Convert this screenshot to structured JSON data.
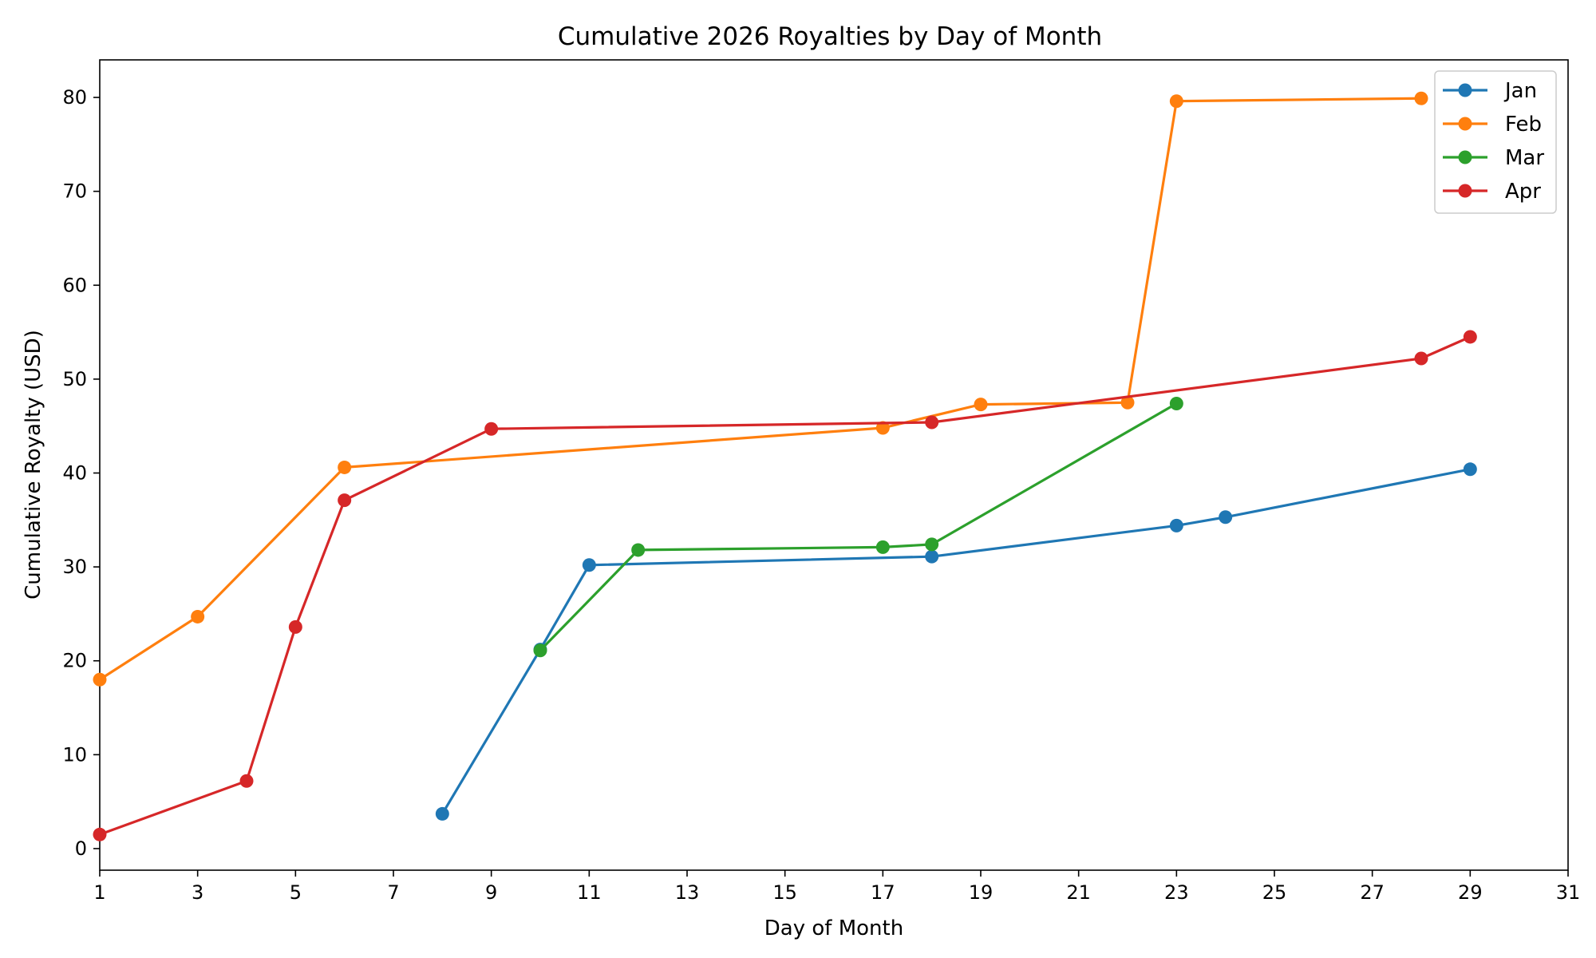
{
  "chart_data": {
    "type": "line",
    "title": "Cumulative 2026 Royalties by Day of Month",
    "xlabel": "Day of Month",
    "ylabel": "Cumulative Royalty (USD)",
    "xlim": [
      1,
      31
    ],
    "ylim": [
      -2.3,
      84
    ],
    "xticks": [
      1,
      3,
      5,
      7,
      9,
      11,
      13,
      15,
      17,
      19,
      21,
      23,
      25,
      27,
      29,
      31
    ],
    "yticks": [
      0,
      10,
      20,
      30,
      40,
      50,
      60,
      70,
      80
    ],
    "grid": false,
    "legend_position": "top-right",
    "series": [
      {
        "name": "Jan",
        "color": "#1f77b4",
        "points": [
          [
            8,
            3.7
          ],
          [
            10,
            21.2
          ],
          [
            11,
            30.2
          ],
          [
            18,
            31.1
          ],
          [
            23,
            34.4
          ],
          [
            24,
            35.3
          ],
          [
            29,
            40.4
          ]
        ]
      },
      {
        "name": "Feb",
        "color": "#ff7f0e",
        "points": [
          [
            1,
            18.0
          ],
          [
            3,
            24.7
          ],
          [
            6,
            40.6
          ],
          [
            17,
            44.8
          ],
          [
            19,
            47.3
          ],
          [
            22,
            47.5
          ],
          [
            23,
            79.6
          ],
          [
            28,
            79.9
          ]
        ]
      },
      {
        "name": "Mar",
        "color": "#2ca02c",
        "points": [
          [
            10,
            21.1
          ],
          [
            12,
            31.8
          ],
          [
            17,
            32.1
          ],
          [
            18,
            32.4
          ],
          [
            23,
            47.4
          ]
        ]
      },
      {
        "name": "Apr",
        "color": "#d62728",
        "points": [
          [
            1,
            1.5
          ],
          [
            4,
            7.2
          ],
          [
            5,
            23.6
          ],
          [
            6,
            37.1
          ],
          [
            9,
            44.7
          ],
          [
            18,
            45.4
          ],
          [
            28,
            52.2
          ],
          [
            29,
            54.5
          ]
        ]
      }
    ]
  }
}
